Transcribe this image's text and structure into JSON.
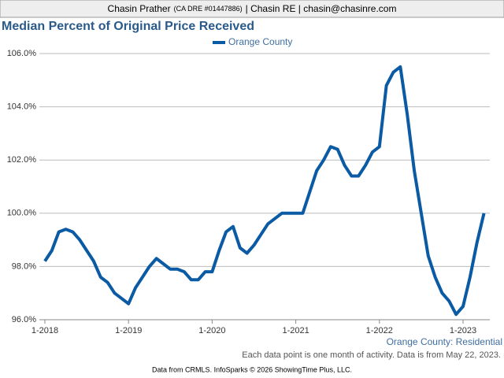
{
  "header": {
    "name": "Chasin Prather",
    "license": "(CA DRE #01447886)",
    "rest": "| Chasin RE | chasin@chasinre.com"
  },
  "chart_data": {
    "type": "line",
    "title": "Median Percent of Original Price Received",
    "subtitle": "Orange County: Residential",
    "note": "Each data point is one month of activity. Data is from May 22, 2023.",
    "categories": [
      "1-2018",
      null,
      null,
      null,
      null,
      null,
      null,
      null,
      null,
      null,
      null,
      null,
      "1-2019",
      null,
      null,
      null,
      null,
      null,
      null,
      null,
      null,
      null,
      null,
      null,
      "1-2020",
      null,
      null,
      null,
      null,
      null,
      null,
      null,
      null,
      null,
      null,
      null,
      "1-2021",
      null,
      null,
      null,
      null,
      null,
      null,
      null,
      null,
      null,
      null,
      null,
      "1-2022",
      null,
      null,
      null,
      null,
      null,
      null,
      null,
      null,
      null,
      null,
      null,
      "1-2023",
      null,
      null,
      null
    ],
    "series": [
      {
        "name": "Orange County",
        "color": "#0b5aa4",
        "values": [
          98.2,
          98.6,
          99.3,
          99.4,
          99.3,
          99.0,
          98.6,
          98.2,
          97.6,
          97.4,
          97.0,
          96.8,
          96.6,
          97.2,
          97.6,
          98.0,
          98.3,
          98.1,
          97.9,
          97.9,
          97.8,
          97.5,
          97.5,
          97.8,
          97.8,
          98.6,
          99.3,
          99.5,
          98.7,
          98.5,
          98.8,
          99.2,
          99.6,
          99.8,
          100.0,
          100.0,
          100.0,
          100.0,
          100.8,
          101.6,
          102.0,
          102.5,
          102.4,
          101.8,
          101.4,
          101.4,
          101.8,
          102.3,
          102.5,
          104.8,
          105.3,
          105.5,
          103.7,
          101.6,
          100.0,
          98.4,
          97.6,
          97.0,
          96.7,
          96.2,
          96.5,
          97.6,
          98.9,
          100.0
        ]
      }
    ],
    "ylim": [
      96,
      106
    ],
    "yticks": [
      {
        "value": 96,
        "label": "96.0%"
      },
      {
        "value": 98,
        "label": "98.0%"
      },
      {
        "value": 100,
        "label": "100.0%"
      },
      {
        "value": 102,
        "label": "102.0%"
      },
      {
        "value": 104,
        "label": "104.0%"
      },
      {
        "value": 106,
        "label": "106.0%"
      }
    ],
    "grid": true,
    "legend": "top"
  },
  "footer": "Data from CRMLS. InfoSparks © 2026 ShowingTime Plus, LLC."
}
